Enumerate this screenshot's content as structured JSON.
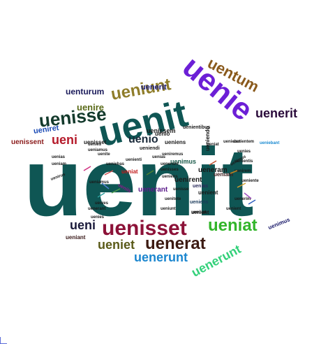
{
  "word_cloud": {
    "words": [
      {
        "text": "uenit",
        "color": "#0f5654"
      },
      {
        "text": "uenit",
        "color": "#0f5654"
      },
      {
        "text": "uenie",
        "color": "#6c1fd6"
      },
      {
        "text": "uenisset",
        "color": "#8c1238"
      },
      {
        "text": "uenisse",
        "color": "#133a2c"
      },
      {
        "text": "ueniunt",
        "color": "#8f7d2a"
      },
      {
        "text": "uentum",
        "color": "#8a5a1c"
      },
      {
        "text": "uenerit",
        "color": "#2a0a3a"
      },
      {
        "text": "ueniat",
        "color": "#32b52a"
      },
      {
        "text": "uenerat",
        "color": "#3c1a12"
      },
      {
        "text": "ueniet",
        "color": "#5a5a18"
      },
      {
        "text": "uenerunt",
        "color": "#1b86cf"
      },
      {
        "text": "uenerunt",
        "color": "#33d17a"
      },
      {
        "text": "ueni",
        "color": "#1a1a3a"
      },
      {
        "text": "ueni",
        "color": "#b51a2a"
      },
      {
        "text": "uenio",
        "color": "#1a2a3a"
      },
      {
        "text": "uenire",
        "color": "#5a6a18"
      },
      {
        "text": "uenerit",
        "color": "#1a1a7a"
      },
      {
        "text": "uenturum",
        "color": "#1a1a5a"
      },
      {
        "text": "ueniret",
        "color": "#1a4ab5"
      },
      {
        "text": "uenissent",
        "color": "#8a1a1a"
      },
      {
        "text": "uenissent",
        "color": "#1a1a1a"
      },
      {
        "text": "uenisset",
        "color": "#1a1a1a"
      },
      {
        "text": "uenerant",
        "color": "#5a1a8a"
      },
      {
        "text": "uenimus",
        "color": "#1a1a6a"
      },
      {
        "text": "ueniant",
        "color": "#3a1a1a"
      },
      {
        "text": "ueniunt",
        "color": "#1a1a1a"
      },
      {
        "text": "uenimus",
        "color": "#1a5a4a"
      },
      {
        "text": "ueniam",
        "color": "#3a1a1a"
      },
      {
        "text": "ueniens",
        "color": "#1a3a5a"
      },
      {
        "text": "uenias",
        "color": "#2a2a5a"
      },
      {
        "text": "uenient",
        "color": "#1a1a1a"
      },
      {
        "text": "uenirent",
        "color": "#1a1a1a"
      },
      {
        "text": "uenissem",
        "color": "#1a1a1a"
      },
      {
        "text": "ueniendo",
        "color": "#1a1a1a"
      },
      {
        "text": "uenies",
        "color": "#1a1a1a"
      },
      {
        "text": "ueniamus",
        "color": "#1a1a1a"
      },
      {
        "text": "ueniens",
        "color": "#1a1a1a"
      },
      {
        "text": "ueniat",
        "color": "#c21a1a"
      },
      {
        "text": "uenerant",
        "color": "#1a1a1a"
      },
      {
        "text": "uenies",
        "color": "#1a1a1a"
      },
      {
        "text": "uenias",
        "color": "#1a1a1a"
      },
      {
        "text": "ueniam",
        "color": "#1a1a1a"
      },
      {
        "text": "uenisses",
        "color": "#1a1a1a"
      },
      {
        "text": "uenirem",
        "color": "#1a1a1a"
      },
      {
        "text": "ueniente",
        "color": "#1a1a1a"
      },
      {
        "text": "uenitote",
        "color": "#1a1a1a"
      },
      {
        "text": "ueniebat",
        "color": "#1a1a1a"
      },
      {
        "text": "ueniunt",
        "color": "#1a1a1a"
      },
      {
        "text": "uenirent",
        "color": "#1a1a1a"
      },
      {
        "text": "uenisse",
        "color": "#1a1a1a"
      },
      {
        "text": "uenientem",
        "color": "#1a1a1a"
      },
      {
        "text": "ueniebant",
        "color": "#1a8ad1"
      },
      {
        "text": "uenientis",
        "color": "#1a1a1a"
      },
      {
        "text": "uenienti",
        "color": "#1a1a1a"
      },
      {
        "text": "uenerim",
        "color": "#1a1a1a"
      },
      {
        "text": "ueniis",
        "color": "#8a1a8a"
      },
      {
        "text": "uenirus",
        "color": "#1a1a1a"
      },
      {
        "text": "uenite",
        "color": "#1a1a1a"
      },
      {
        "text": "ueniebas",
        "color": "#1a1a1a"
      },
      {
        "text": "uenientibus",
        "color": "#1a1a1a"
      },
      {
        "text": "ueniendi",
        "color": "#1a1a1a"
      },
      {
        "text": "uenies",
        "color": "#1a1a1a"
      },
      {
        "text": "ueniamus",
        "color": "#1a1a1a"
      },
      {
        "text": "ueniremus",
        "color": "#1a1a1a"
      },
      {
        "text": "ueneram",
        "color": "#1a1a1a"
      },
      {
        "text": "uenio",
        "color": "#1a1a1a"
      },
      {
        "text": "uenies",
        "color": "#1a1a1a"
      },
      {
        "text": "uenimus",
        "color": "#1a1a1a"
      },
      {
        "text": "ueniunt",
        "color": "#1a1a1a"
      },
      {
        "text": "ueniat",
        "color": "#1a1a1a"
      },
      {
        "text": "ueniens",
        "color": "#1a1a1a"
      },
      {
        "text": "uenias",
        "color": "#1a1a1a"
      },
      {
        "text": "uenient",
        "color": "#1a1a1a"
      },
      {
        "text": "uenerunt",
        "color": "#1a1a1a"
      }
    ]
  }
}
